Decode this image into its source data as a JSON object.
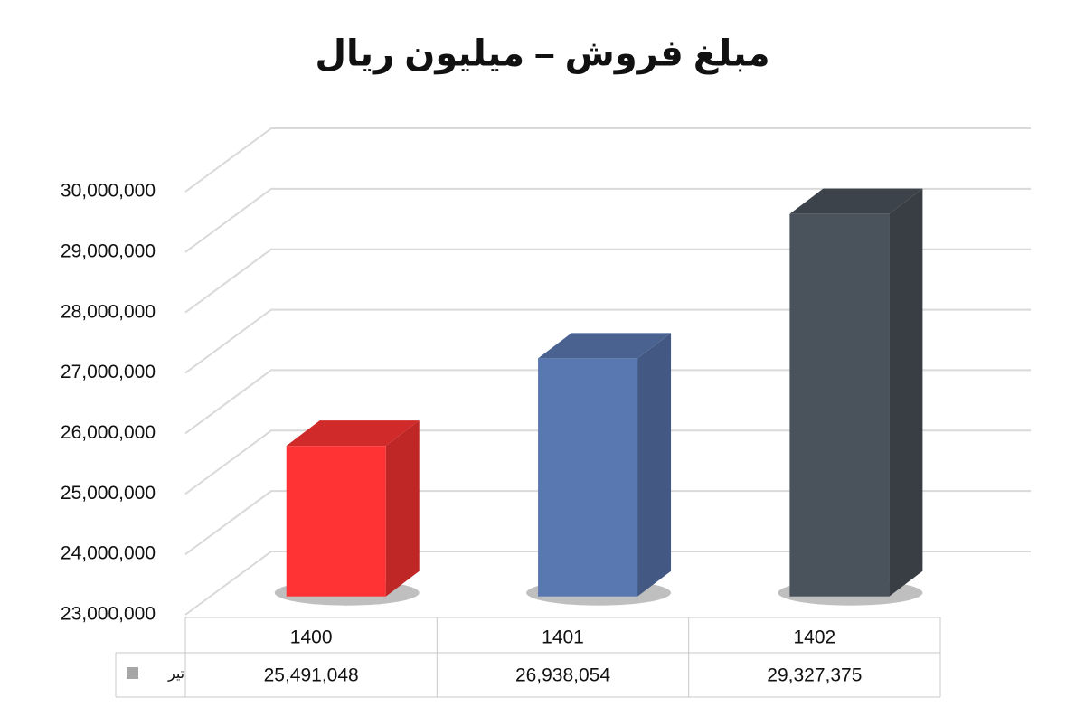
{
  "chart_data": {
    "type": "bar3d",
    "title": "مبلغ فروش – میلیون ریال",
    "categories": [
      "1400",
      "1401",
      "1402"
    ],
    "series": [
      {
        "name": "تیر",
        "color": "#a6a6a6",
        "values": [
          25491048,
          26938054,
          29327375
        ],
        "value_labels": [
          "25,491,048",
          "26,938,054",
          "29,327,375"
        ],
        "point_colors": [
          "#ff3333",
          "#5977b0",
          "#4a525b"
        ]
      }
    ],
    "ylim": [
      23000000,
      30000000
    ],
    "yticks": [
      {
        "value": 23000000,
        "label": "23,000,000"
      },
      {
        "value": 24000000,
        "label": "24,000,000"
      },
      {
        "value": 25000000,
        "label": "25,000,000"
      },
      {
        "value": 26000000,
        "label": "26,000,000"
      },
      {
        "value": 27000000,
        "label": "27,000,000"
      },
      {
        "value": 28000000,
        "label": "28,000,000"
      },
      {
        "value": 29000000,
        "label": "29,000,000"
      },
      {
        "value": 30000000,
        "label": "30,000,000"
      }
    ],
    "grid": true
  }
}
